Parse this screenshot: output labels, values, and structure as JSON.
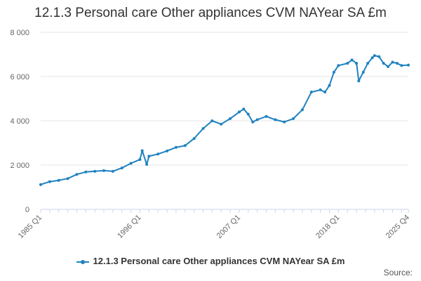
{
  "chart_data": {
    "type": "line",
    "title": "12.1.3 Personal care Other appliances CVM NAYear SA £m",
    "xlabel": "",
    "ylabel": "",
    "ylim": [
      0,
      8000
    ],
    "y_ticks": [
      "0",
      "2 000",
      "4 000",
      "6 000",
      "8 000"
    ],
    "x_range": [
      "1985 Q1",
      "2025 Q4"
    ],
    "x_tick_labels": [
      "1985 Q1",
      "1996 Q1",
      "2007 Q1",
      "2018 Q1",
      "2025 Q4"
    ],
    "grid": true,
    "legend_position": "bottom",
    "color": "#1f82c0",
    "series": [
      {
        "name": "12.1.3 Personal care Other appliances CVM NAYear SA £m",
        "points": [
          [
            "1985 Q1",
            1120
          ],
          [
            "1986 Q1",
            1250
          ],
          [
            "1987 Q1",
            1310
          ],
          [
            "1988 Q1",
            1390
          ],
          [
            "1989 Q1",
            1580
          ],
          [
            "1990 Q1",
            1690
          ],
          [
            "1991 Q1",
            1720
          ],
          [
            "1992 Q1",
            1750
          ],
          [
            "1993 Q1",
            1720
          ],
          [
            "1994 Q1",
            1870
          ],
          [
            "1995 Q1",
            2080
          ],
          [
            "1996 Q1",
            2250
          ],
          [
            "1996 Q2",
            2650
          ],
          [
            "1996 Q4",
            2030
          ],
          [
            "1997 Q1",
            2400
          ],
          [
            "1998 Q1",
            2500
          ],
          [
            "1999 Q1",
            2640
          ],
          [
            "2000 Q1",
            2800
          ],
          [
            "2001 Q1",
            2880
          ],
          [
            "2002 Q1",
            3200
          ],
          [
            "2003 Q1",
            3650
          ],
          [
            "2004 Q1",
            4000
          ],
          [
            "2005 Q1",
            3850
          ],
          [
            "2006 Q1",
            4100
          ],
          [
            "2007 Q1",
            4400
          ],
          [
            "2007 Q3",
            4530
          ],
          [
            "2008 Q1",
            4300
          ],
          [
            "2008 Q3",
            3950
          ],
          [
            "2009 Q1",
            4050
          ],
          [
            "2010 Q1",
            4200
          ],
          [
            "2011 Q1",
            4050
          ],
          [
            "2012 Q1",
            3950
          ],
          [
            "2013 Q1",
            4100
          ],
          [
            "2014 Q1",
            4500
          ],
          [
            "2015 Q1",
            5300
          ],
          [
            "2016 Q1",
            5400
          ],
          [
            "2016 Q3",
            5300
          ],
          [
            "2017 Q1",
            5600
          ],
          [
            "2017 Q3",
            6200
          ],
          [
            "2018 Q1",
            6500
          ],
          [
            "2019 Q1",
            6600
          ],
          [
            "2019 Q3",
            6750
          ],
          [
            "2020 Q1",
            6600
          ],
          [
            "2020 Q2",
            5800
          ],
          [
            "2020 Q4",
            6200
          ],
          [
            "2021 Q2",
            6600
          ],
          [
            "2021 Q4",
            6850
          ],
          [
            "2022 Q1",
            6950
          ],
          [
            "2022 Q3",
            6900
          ],
          [
            "2023 Q1",
            6600
          ],
          [
            "2023 Q3",
            6450
          ],
          [
            "2024 Q1",
            6650
          ],
          [
            "2024 Q3",
            6600
          ],
          [
            "2025 Q1",
            6500
          ],
          [
            "2025 Q4",
            6520
          ]
        ]
      }
    ],
    "source_text": "Source:"
  }
}
